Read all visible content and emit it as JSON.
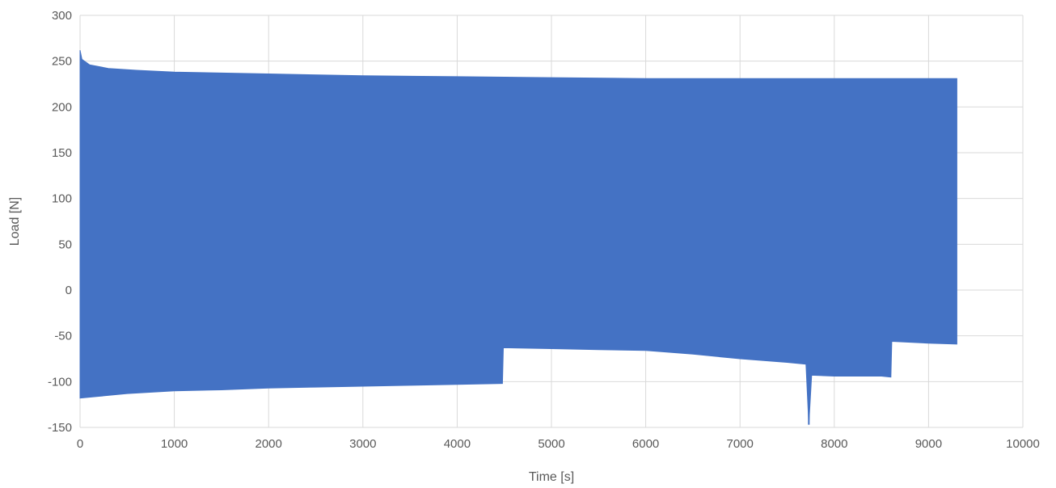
{
  "chart_data": {
    "type": "area",
    "title": "",
    "xlabel": "Time [s]",
    "ylabel": "Load [N]",
    "xlim": [
      0,
      10000
    ],
    "ylim": [
      -150,
      300
    ],
    "x_ticks": [
      "0",
      "1000",
      "2000",
      "3000",
      "4000",
      "5000",
      "6000",
      "7000",
      "8000",
      "9000",
      "10000"
    ],
    "y_ticks": [
      "300",
      "250",
      "200",
      "150",
      "100",
      "50",
      "0",
      "-50",
      "-100",
      "-150"
    ],
    "grid": true,
    "legend": "none",
    "color": "#4472C4",
    "series": [
      {
        "upper_envelope": {
          "x": [
            0,
            20,
            100,
            300,
            600,
            1000,
            1500,
            2000,
            3000,
            4000,
            5000,
            6000,
            7000,
            8000,
            9000,
            9300
          ],
          "y": [
            262,
            252,
            246,
            242,
            240,
            238,
            237,
            236,
            234,
            233,
            232,
            231,
            231,
            231,
            231,
            231
          ]
        },
        "lower_envelope": {
          "x": [
            0,
            200,
            500,
            1000,
            1500,
            2000,
            2500,
            3000,
            3500,
            4000,
            4480,
            4490,
            5000,
            5500,
            6000,
            6500,
            7000,
            7500,
            7700,
            7730,
            7760,
            8000,
            8500,
            8600,
            8610,
            9000,
            9300
          ],
          "y": [
            -118,
            -116,
            -113,
            -110,
            -109,
            -107,
            -106,
            -105,
            -104,
            -103,
            -102,
            -63,
            -64,
            -65,
            -66,
            -70,
            -75,
            -79,
            -81,
            -147,
            -93,
            -94,
            -94,
            -95,
            -56,
            -58,
            -59
          ]
        },
        "spikes": [
          {
            "x": 7720,
            "y_min": -82,
            "y_max": 22
          },
          {
            "x": 7730,
            "y_min": -147,
            "y_max": -81
          }
        ]
      }
    ]
  }
}
